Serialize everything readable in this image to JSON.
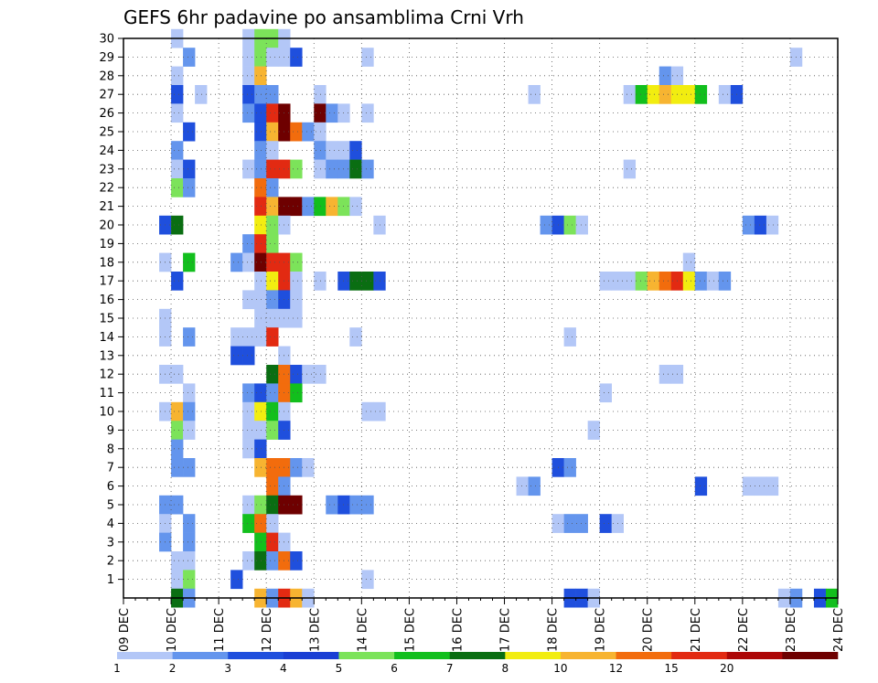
{
  "chart_data": {
    "type": "heatmap",
    "title": "GEFS 6hr padavine po ansamblima Crni Vrh",
    "x_tick_labels": [
      "09 DEC",
      "10 DEC",
      "11 DEC",
      "12 DEC",
      "13 DEC",
      "14 DEC",
      "15 DEC",
      "16 DEC",
      "17 DEC",
      "18 DEC",
      "19 DEC",
      "20 DEC",
      "21 DEC",
      "22 DEC",
      "23 DEC",
      "24 DEC"
    ],
    "x_range": [
      0,
      60
    ],
    "x_unit": "6-hour steps from 09 DEC",
    "y_tick_labels": [
      "1",
      "2",
      "3",
      "4",
      "5",
      "6",
      "7",
      "8",
      "9",
      "10",
      "11",
      "12",
      "13",
      "14",
      "15",
      "16",
      "17",
      "18",
      "19",
      "20",
      "21",
      "22",
      "23",
      "24",
      "25",
      "26",
      "27",
      "28",
      "29",
      "30"
    ],
    "y_range": [
      0,
      30
    ],
    "grid": true,
    "colorbar": {
      "labels": [
        "1",
        "2",
        "3",
        "4",
        "5",
        "6",
        "7",
        "8",
        "10",
        "12",
        "15",
        "20"
      ],
      "colors": [
        "#b3c7f7",
        "#6495ed",
        "#1f4fdd",
        "#1a3fd4",
        "#7ce35a",
        "#12bf1d",
        "#0a6e12",
        "#f2ed10",
        "#f7b431",
        "#f26c0d",
        "#e22a12",
        "#ad0707",
        "#6e0000"
      ],
      "placement": "bottom"
    },
    "cells": [
      [
        4,
        30,
        1
      ],
      [
        10,
        30,
        1
      ],
      [
        11,
        30,
        5
      ],
      [
        12,
        30,
        5
      ],
      [
        13,
        30,
        1
      ],
      [
        5,
        29,
        2
      ],
      [
        10,
        29,
        1
      ],
      [
        11,
        29,
        5
      ],
      [
        12,
        29,
        1
      ],
      [
        13,
        29,
        1
      ],
      [
        14,
        29,
        3
      ],
      [
        20,
        29,
        1
      ],
      [
        56,
        29,
        1
      ],
      [
        4,
        28,
        1
      ],
      [
        10,
        28,
        1
      ],
      [
        11,
        28,
        10
      ],
      [
        45,
        28,
        2
      ],
      [
        46,
        28,
        1
      ],
      [
        4,
        27,
        3
      ],
      [
        6,
        27,
        1
      ],
      [
        10,
        27,
        3
      ],
      [
        11,
        27,
        2
      ],
      [
        12,
        27,
        2
      ],
      [
        16,
        27,
        1
      ],
      [
        34,
        27,
        1
      ],
      [
        42,
        27,
        1
      ],
      [
        43,
        27,
        6
      ],
      [
        44,
        27,
        8
      ],
      [
        45,
        27,
        10
      ],
      [
        46,
        27,
        8
      ],
      [
        47,
        27,
        8
      ],
      [
        48,
        27,
        6
      ],
      [
        50,
        27,
        1
      ],
      [
        51,
        27,
        3
      ],
      [
        4,
        26,
        1
      ],
      [
        10,
        26,
        2
      ],
      [
        11,
        26,
        3
      ],
      [
        12,
        26,
        15
      ],
      [
        13,
        26,
        20
      ],
      [
        16,
        26,
        20
      ],
      [
        17,
        26,
        2
      ],
      [
        18,
        26,
        1
      ],
      [
        20,
        26,
        1
      ],
      [
        5,
        25,
        3
      ],
      [
        11,
        25,
        3
      ],
      [
        12,
        25,
        10
      ],
      [
        13,
        25,
        20
      ],
      [
        14,
        25,
        12
      ],
      [
        15,
        25,
        2
      ],
      [
        16,
        25,
        1
      ],
      [
        4,
        24,
        2
      ],
      [
        11,
        24,
        2
      ],
      [
        12,
        24,
        1
      ],
      [
        16,
        24,
        2
      ],
      [
        17,
        24,
        1
      ],
      [
        18,
        24,
        1
      ],
      [
        19,
        24,
        3
      ],
      [
        4,
        23,
        1
      ],
      [
        5,
        23,
        3
      ],
      [
        10,
        23,
        1
      ],
      [
        11,
        23,
        2
      ],
      [
        12,
        23,
        15
      ],
      [
        13,
        23,
        15
      ],
      [
        14,
        23,
        5
      ],
      [
        16,
        23,
        1
      ],
      [
        17,
        23,
        2
      ],
      [
        18,
        23,
        2
      ],
      [
        19,
        23,
        7
      ],
      [
        20,
        23,
        2
      ],
      [
        42,
        23,
        1
      ],
      [
        4,
        22,
        5
      ],
      [
        5,
        22,
        2
      ],
      [
        11,
        22,
        12
      ],
      [
        12,
        22,
        2
      ],
      [
        11,
        21,
        15
      ],
      [
        12,
        21,
        10
      ],
      [
        13,
        21,
        20
      ],
      [
        14,
        21,
        20
      ],
      [
        15,
        21,
        2
      ],
      [
        16,
        21,
        6
      ],
      [
        17,
        21,
        10
      ],
      [
        18,
        21,
        5
      ],
      [
        19,
        21,
        1
      ],
      [
        3,
        20,
        3
      ],
      [
        4,
        20,
        7
      ],
      [
        11,
        20,
        8
      ],
      [
        12,
        20,
        5
      ],
      [
        13,
        20,
        1
      ],
      [
        21,
        20,
        1
      ],
      [
        35,
        20,
        2
      ],
      [
        36,
        20,
        3
      ],
      [
        37,
        20,
        5
      ],
      [
        38,
        20,
        1
      ],
      [
        52,
        20,
        2
      ],
      [
        53,
        20,
        3
      ],
      [
        54,
        20,
        1
      ],
      [
        10,
        19,
        2
      ],
      [
        11,
        19,
        15
      ],
      [
        12,
        19,
        5
      ],
      [
        3,
        18,
        1
      ],
      [
        5,
        18,
        6
      ],
      [
        9,
        18,
        2
      ],
      [
        10,
        18,
        1
      ],
      [
        11,
        18,
        20
      ],
      [
        12,
        18,
        15
      ],
      [
        13,
        18,
        15
      ],
      [
        14,
        18,
        5
      ],
      [
        47,
        18,
        1
      ],
      [
        4,
        17,
        3
      ],
      [
        11,
        17,
        1
      ],
      [
        12,
        17,
        8
      ],
      [
        13,
        17,
        15
      ],
      [
        14,
        17,
        1
      ],
      [
        16,
        17,
        1
      ],
      [
        18,
        17,
        3
      ],
      [
        19,
        17,
        7
      ],
      [
        20,
        17,
        7
      ],
      [
        21,
        17,
        3
      ],
      [
        40,
        17,
        1
      ],
      [
        41,
        17,
        1
      ],
      [
        42,
        17,
        1
      ],
      [
        43,
        17,
        5
      ],
      [
        44,
        17,
        10
      ],
      [
        45,
        17,
        12
      ],
      [
        46,
        17,
        15
      ],
      [
        47,
        17,
        8
      ],
      [
        48,
        17,
        2
      ],
      [
        49,
        17,
        1
      ],
      [
        50,
        17,
        2
      ],
      [
        10,
        16,
        1
      ],
      [
        11,
        16,
        1
      ],
      [
        12,
        16,
        2
      ],
      [
        13,
        16,
        3
      ],
      [
        14,
        16,
        1
      ],
      [
        3,
        15,
        1
      ],
      [
        11,
        15,
        1
      ],
      [
        12,
        15,
        1
      ],
      [
        13,
        15,
        1
      ],
      [
        14,
        15,
        1
      ],
      [
        3,
        14,
        1
      ],
      [
        5,
        14,
        2
      ],
      [
        9,
        14,
        1
      ],
      [
        10,
        14,
        1
      ],
      [
        11,
        14,
        1
      ],
      [
        12,
        14,
        15
      ],
      [
        19,
        14,
        1
      ],
      [
        37,
        14,
        1
      ],
      [
        9,
        13,
        3
      ],
      [
        10,
        13,
        3
      ],
      [
        13,
        13,
        1
      ],
      [
        3,
        12,
        1
      ],
      [
        4,
        12,
        1
      ],
      [
        12,
        12,
        7
      ],
      [
        13,
        12,
        12
      ],
      [
        14,
        12,
        3
      ],
      [
        15,
        12,
        1
      ],
      [
        16,
        12,
        1
      ],
      [
        45,
        12,
        1
      ],
      [
        46,
        12,
        1
      ],
      [
        5,
        11,
        1
      ],
      [
        10,
        11,
        2
      ],
      [
        11,
        11,
        3
      ],
      [
        12,
        11,
        2
      ],
      [
        13,
        11,
        12
      ],
      [
        14,
        11,
        6
      ],
      [
        40,
        11,
        1
      ],
      [
        3,
        10,
        1
      ],
      [
        4,
        10,
        10
      ],
      [
        5,
        10,
        2
      ],
      [
        10,
        10,
        1
      ],
      [
        11,
        10,
        8
      ],
      [
        12,
        10,
        6
      ],
      [
        13,
        10,
        1
      ],
      [
        20,
        10,
        1
      ],
      [
        21,
        10,
        1
      ],
      [
        4,
        9,
        5
      ],
      [
        5,
        9,
        1
      ],
      [
        10,
        9,
        1
      ],
      [
        11,
        9,
        1
      ],
      [
        12,
        9,
        5
      ],
      [
        13,
        9,
        3
      ],
      [
        39,
        9,
        1
      ],
      [
        4,
        8,
        2
      ],
      [
        10,
        8,
        1
      ],
      [
        11,
        8,
        3
      ],
      [
        4,
        7,
        2
      ],
      [
        5,
        7,
        2
      ],
      [
        11,
        7,
        10
      ],
      [
        12,
        7,
        12
      ],
      [
        13,
        7,
        12
      ],
      [
        14,
        7,
        2
      ],
      [
        15,
        7,
        1
      ],
      [
        36,
        7,
        3
      ],
      [
        37,
        7,
        2
      ],
      [
        12,
        6,
        12
      ],
      [
        13,
        6,
        2
      ],
      [
        33,
        6,
        1
      ],
      [
        34,
        6,
        2
      ],
      [
        48,
        6,
        3
      ],
      [
        52,
        6,
        1
      ],
      [
        53,
        6,
        1
      ],
      [
        54,
        6,
        1
      ],
      [
        3,
        5,
        2
      ],
      [
        4,
        5,
        2
      ],
      [
        10,
        5,
        1
      ],
      [
        11,
        5,
        5
      ],
      [
        12,
        5,
        7
      ],
      [
        13,
        5,
        20
      ],
      [
        14,
        5,
        20
      ],
      [
        17,
        5,
        2
      ],
      [
        18,
        5,
        3
      ],
      [
        19,
        5,
        2
      ],
      [
        20,
        5,
        2
      ],
      [
        3,
        4,
        1
      ],
      [
        5,
        4,
        2
      ],
      [
        10,
        4,
        6
      ],
      [
        11,
        4,
        12
      ],
      [
        12,
        4,
        1
      ],
      [
        36,
        4,
        1
      ],
      [
        37,
        4,
        2
      ],
      [
        38,
        4,
        2
      ],
      [
        40,
        4,
        3
      ],
      [
        41,
        4,
        1
      ],
      [
        3,
        3,
        2
      ],
      [
        5,
        3,
        2
      ],
      [
        11,
        3,
        6
      ],
      [
        12,
        3,
        15
      ],
      [
        13,
        3,
        1
      ],
      [
        4,
        2,
        1
      ],
      [
        5,
        2,
        1
      ],
      [
        10,
        2,
        1
      ],
      [
        11,
        2,
        7
      ],
      [
        12,
        2,
        2
      ],
      [
        13,
        2,
        12
      ],
      [
        14,
        2,
        3
      ],
      [
        4,
        1,
        1
      ],
      [
        5,
        1,
        5
      ],
      [
        9,
        1,
        3
      ],
      [
        20,
        1,
        1
      ],
      [
        4,
        0,
        7
      ],
      [
        5,
        0,
        2
      ],
      [
        11,
        0,
        10
      ],
      [
        12,
        0,
        2
      ],
      [
        13,
        0,
        15
      ],
      [
        14,
        0,
        10
      ],
      [
        15,
        0,
        1
      ],
      [
        37,
        0,
        3
      ],
      [
        38,
        0,
        3
      ],
      [
        39,
        0,
        1
      ],
      [
        55,
        0,
        1
      ],
      [
        56,
        0,
        2
      ],
      [
        58,
        0,
        3
      ],
      [
        59,
        0,
        6
      ]
    ]
  }
}
